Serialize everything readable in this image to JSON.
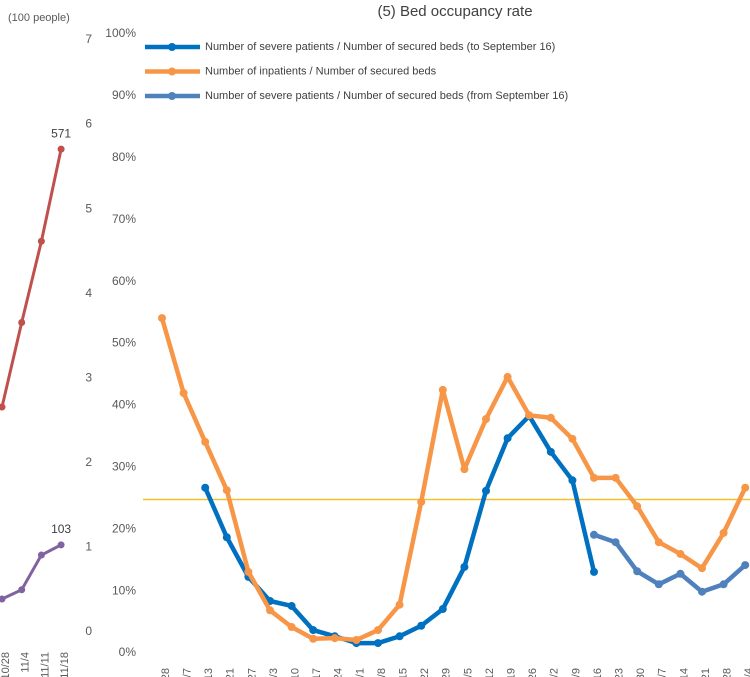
{
  "chart_data": [
    {
      "type": "line",
      "ylabel": "(100 people)",
      "categories": [
        "10/28",
        "11/4",
        "11/11",
        "11/18"
      ],
      "ylim": [
        0,
        7
      ],
      "yticks": [
        0,
        1,
        2,
        3,
        4,
        5,
        6,
        7
      ],
      "series": [
        {
          "name": null,
          "color": "#c0504d",
          "values": [
            2.66,
            3.66,
            4.62,
            5.71
          ],
          "value_labels": [
            null,
            null,
            null,
            "571"
          ]
        },
        {
          "name": null,
          "color": "#8064a2",
          "values": [
            0.39,
            0.5,
            0.91,
            1.03
          ],
          "value_labels": [
            null,
            null,
            null,
            "103"
          ]
        }
      ]
    },
    {
      "type": "line",
      "title": "(5) Bed occupancy rate",
      "categories": [
        "28",
        "/7",
        "13",
        "21",
        "27",
        "/3",
        "10",
        "17",
        "24",
        "/1",
        "/8",
        "15",
        "22",
        "29",
        "/5",
        "12",
        "19",
        "26",
        "/2",
        "/9",
        "16",
        "23",
        "30",
        "/7",
        "14",
        "21",
        "28",
        "/4"
      ],
      "ylim": [
        0,
        100
      ],
      "yticks": [
        {
          "value": 0,
          "label": "0%"
        },
        {
          "value": 10,
          "label": "10%"
        },
        {
          "value": 20,
          "label": "20%"
        },
        {
          "value": 30,
          "label": "30%"
        },
        {
          "value": 40,
          "label": "40%"
        },
        {
          "value": 50,
          "label": "50%"
        },
        {
          "value": 60,
          "label": "60%"
        },
        {
          "value": 70,
          "label": "70%"
        },
        {
          "value": 80,
          "label": "80%"
        },
        {
          "value": 90,
          "label": "90%"
        },
        {
          "value": 100,
          "label": "100%"
        }
      ],
      "reference_line": {
        "value": 24.8,
        "color": "#f2c12e"
      },
      "series": [
        {
          "name": "Number of severe patients / Number of secured beds (to September 16)",
          "color": "#0070c0",
          "values": [
            null,
            null,
            26.7,
            18.7,
            12.3,
            8.4,
            7.6,
            3.7,
            2.7,
            1.6,
            1.6,
            2.7,
            4.4,
            7.1,
            13.9,
            26.2,
            34.7,
            38.3,
            32.5,
            27.9,
            13.1,
            null,
            null,
            null,
            null,
            null,
            null,
            null
          ]
        },
        {
          "name": "Number of inpatients / Number of secured beds",
          "color": "#f79646",
          "values": [
            54.1,
            42.0,
            34.1,
            26.3,
            13.1,
            6.9,
            4.2,
            2.3,
            2.4,
            2.1,
            3.7,
            7.8,
            24.4,
            42.5,
            29.7,
            37.8,
            44.6,
            38.4,
            38.0,
            34.6,
            28.3,
            28.3,
            23.7,
            17.9,
            16.0,
            13.7,
            19.4,
            26.7
          ]
        },
        {
          "name": "Number of severe patients / Number of secured beds (from September 16)",
          "color": "#4f81bd",
          "values": [
            null,
            null,
            null,
            null,
            null,
            null,
            null,
            null,
            null,
            null,
            null,
            null,
            null,
            null,
            null,
            null,
            null,
            null,
            null,
            null,
            19.1,
            17.9,
            13.2,
            11.1,
            12.8,
            9.9,
            11.1,
            14.2
          ]
        }
      ]
    }
  ]
}
